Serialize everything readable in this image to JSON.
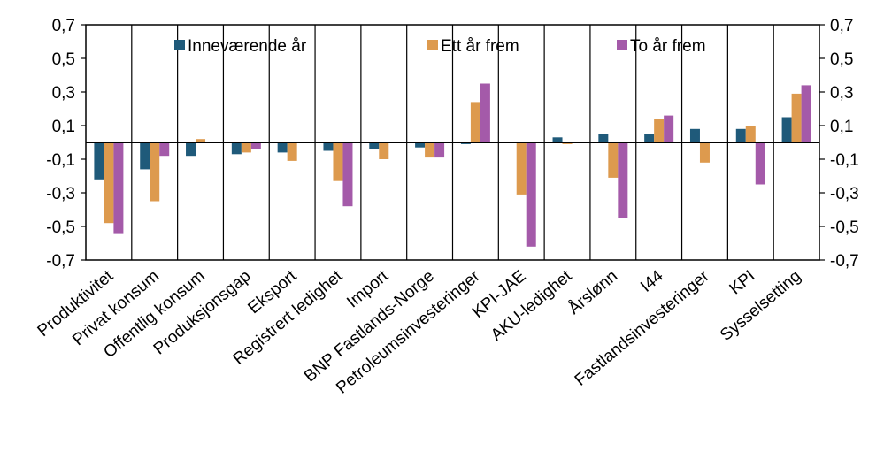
{
  "chart_data": {
    "type": "bar",
    "categories": [
      "Produktivitet",
      "Privat konsum",
      "Offentlig konsum",
      "Produksjonsgap",
      "Eksport",
      "Registrert ledighet",
      "Import",
      "BNP Fastlands-Norge",
      "Petroleumsinvesteringer",
      "KPI-JAE",
      "AKU-ledighet",
      "Årslønn",
      "I44",
      "Fastlandsinvesteringer",
      "KPI",
      "Sysselsetting"
    ],
    "series": [
      {
        "name": "Inneværende år",
        "color": "#1f5a7a",
        "values": [
          -0.22,
          -0.16,
          -0.08,
          -0.07,
          -0.06,
          -0.05,
          -0.04,
          -0.03,
          -0.01,
          0.0,
          0.03,
          0.05,
          0.05,
          0.08,
          0.08,
          0.15
        ]
      },
      {
        "name": "Ett år frem",
        "color": "#dd9a4e",
        "values": [
          -0.48,
          -0.35,
          0.02,
          -0.06,
          -0.11,
          -0.23,
          -0.1,
          -0.09,
          0.24,
          -0.31,
          -0.01,
          -0.21,
          0.14,
          -0.12,
          0.1,
          0.29
        ]
      },
      {
        "name": "To år frem",
        "color": "#a45aa9",
        "values": [
          -0.54,
          -0.08,
          0.0,
          -0.04,
          0.0,
          -0.38,
          0.0,
          -0.09,
          0.35,
          -0.62,
          0.0,
          -0.45,
          0.16,
          0.0,
          -0.25,
          0.34
        ]
      }
    ],
    "ylim": [
      -0.7,
      0.7
    ],
    "yticks": [
      "0,7",
      "0,5",
      "0,3",
      "0,1",
      "-0,1",
      "-0,3",
      "-0,5",
      "-0,7"
    ],
    "legend_position": "top"
  }
}
